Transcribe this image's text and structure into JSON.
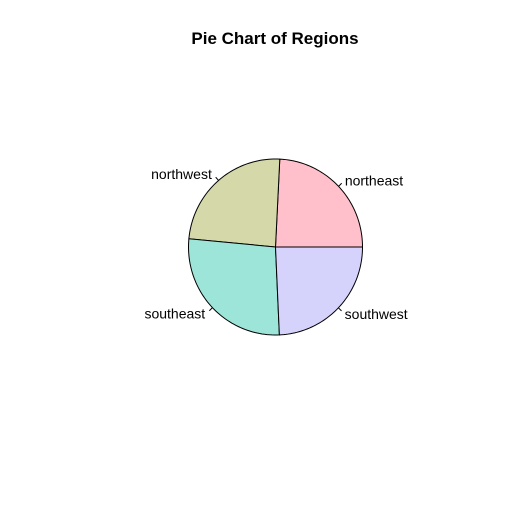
{
  "chart_data": {
    "type": "pie",
    "title": "Pie Chart of Regions",
    "categories": [
      "northeast",
      "northwest",
      "southeast",
      "southwest"
    ],
    "values": [
      324,
      325,
      364,
      325
    ],
    "colors": [
      "#FFC0CB",
      "#D5D8A8",
      "#9EE5D9",
      "#D5D2FC"
    ],
    "direction": "counter-clockwise",
    "start_angle_deg": 0,
    "legend": "none"
  }
}
